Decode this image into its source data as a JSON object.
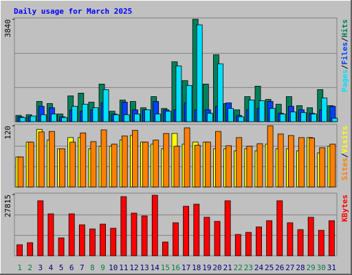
{
  "chart_data": {
    "title": "Daily usage for March 2025",
    "legend_separator": "/",
    "categories": [
      "1",
      "2",
      "3",
      "4",
      "5",
      "6",
      "7",
      "8",
      "9",
      "10",
      "11",
      "12",
      "13",
      "14",
      "15",
      "16",
      "17",
      "18",
      "19",
      "20",
      "21",
      "22",
      "23",
      "24",
      "25",
      "26",
      "27",
      "28",
      "29",
      "30",
      "31"
    ],
    "category_colors": [
      "#008040",
      "#008040",
      "#000080",
      "#000080",
      "#000080",
      "#000080",
      "#000080",
      "#008040",
      "#008040",
      "#000080",
      "#000080",
      "#000080",
      "#000080",
      "#000080",
      "#008040",
      "#008040",
      "#000080",
      "#000080",
      "#000080",
      "#000080",
      "#000080",
      "#008040",
      "#008040",
      "#000080",
      "#000080",
      "#000080",
      "#000080",
      "#000080",
      "#008040",
      "#008040",
      "#000080"
    ],
    "panels": [
      {
        "type": "bar",
        "ylim": [
          0,
          3840
        ],
        "yticks": [
          3840
        ],
        "grid": [
          1280,
          2560
        ],
        "series": [
          {
            "name": "Hits",
            "color": "#00805c",
            "values": [
              235,
              260,
              758,
              680,
              287,
              967,
              1071,
              731,
              1410,
              392,
              810,
              758,
              522,
              940,
              496,
              2247,
              1541,
              3840,
              1410,
              2508,
              680,
              444,
              940,
              1332,
              836,
              653,
              940,
              601,
              522,
              1202,
              601
            ]
          },
          {
            "name": "Files",
            "color": "#0040ff",
            "values": [
              183,
              183,
              575,
              522,
              183,
              444,
              392,
              444,
              705,
              287,
              731,
              444,
              444,
              758,
              444,
              444,
              705,
              444,
              444,
              575,
              705,
              235,
              444,
              496,
              758,
              313,
              575,
              444,
              313,
              444,
              575
            ]
          },
          {
            "name": "Pages",
            "color": "#00e0ff",
            "values": [
              157,
              209,
              261,
              287,
              157,
              575,
              653,
              522,
              1202,
              261,
              261,
              287,
              444,
              287,
              392,
              2090,
              1358,
              3631,
              313,
              2168,
              496,
              183,
              810,
              784,
              496,
              287,
              366,
              340,
              287,
              888,
              131
            ]
          }
        ]
      },
      {
        "type": "bar",
        "ylim": [
          0,
          120
        ],
        "yticks": [
          120
        ],
        "grid": [
          40,
          80
        ],
        "series": [
          {
            "name": "Visits",
            "color": "#ffff00",
            "values": [
              59,
              88,
              113,
              92,
              75,
              97,
              97,
              75,
              80,
              80,
              92,
              101,
              88,
              84,
              75,
              105,
              84,
              88,
              88,
              75,
              75,
              71,
              75,
              71,
              84,
              75,
              75,
              71,
              97,
              67,
              80
            ]
          },
          {
            "name": "Sites",
            "color": "#ff8000",
            "values": [
              59,
              88,
              108,
              109,
              75,
              88,
              106,
              89,
              112,
              84,
              100,
              111,
              88,
              92,
              105,
              80,
              116,
              82,
              88,
              109,
              81,
              97,
              80,
              85,
              120,
              104,
              101,
              97,
              96,
              77,
              84
            ]
          }
        ]
      },
      {
        "type": "bar",
        "ylim": [
          0,
          27815
        ],
        "yticks": [
          27815
        ],
        "grid": [
          9272,
          18543
        ],
        "series": [
          {
            "name": "KBytes",
            "color": "#ff0000",
            "values": [
              5000,
              5938,
              25000,
              19063,
              8125,
              19063,
              14063,
              12188,
              14375,
              12500,
              26875,
              19375,
              18125,
              27500,
              6250,
              15000,
              22500,
              23438,
              17500,
              15625,
              25000,
              9688,
              10625,
              13125,
              15938,
              25000,
              15000,
              11875,
              17500,
              11563,
              15938
            ]
          }
        ]
      }
    ]
  }
}
